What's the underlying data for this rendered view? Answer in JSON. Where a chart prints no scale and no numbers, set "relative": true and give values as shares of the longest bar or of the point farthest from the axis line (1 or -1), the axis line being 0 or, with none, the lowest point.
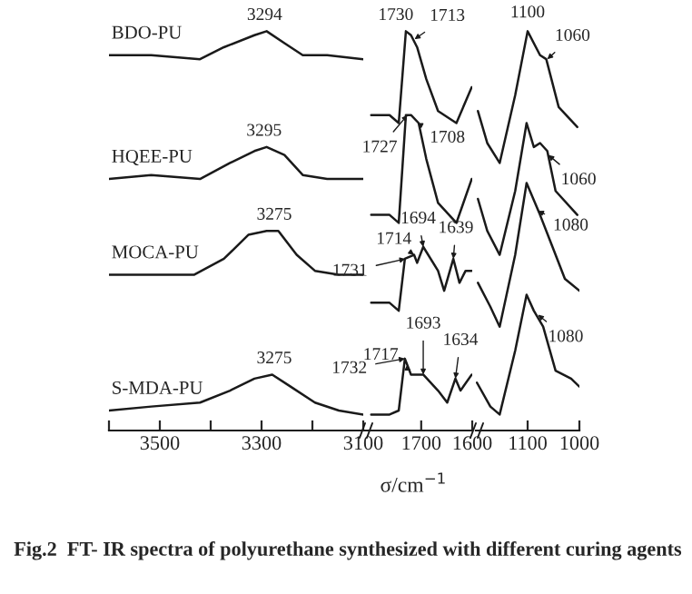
{
  "chart_data": [
    {
      "type": "line",
      "relative": true,
      "xlim": [
        3600,
        3100
      ],
      "xticks": [
        {
          "value": 3600,
          "label": null
        },
        3500,
        {
          "value": 3400,
          "label": null
        },
        3300,
        {
          "value": 3200,
          "label": null
        },
        3100
      ],
      "series": [
        {
          "name": "BDO-PU",
          "color": "#1a1a1a",
          "x": [
            3600,
            3517,
            3421,
            3374,
            3314,
            3290,
            3255,
            3219,
            3171,
            3100
          ],
          "values": [
            0.94,
            0.94,
            0.93,
            0.96,
            0.99,
            1.0,
            0.97,
            0.94,
            0.94,
            0.93
          ]
        },
        {
          "name": "HQEE-PU",
          "color": "#1a1a1a",
          "x": [
            3600,
            3517,
            3421,
            3362,
            3314,
            3290,
            3255,
            3219,
            3171,
            3100
          ],
          "values": [
            0.63,
            0.64,
            0.63,
            0.67,
            0.7,
            0.71,
            0.69,
            0.64,
            0.63,
            0.63
          ]
        },
        {
          "name": "MOCA-PU",
          "color": "#1a1a1a",
          "x": [
            3600,
            3517,
            3433,
            3374,
            3326,
            3290,
            3267,
            3231,
            3195,
            3148,
            3100
          ],
          "values": [
            0.39,
            0.39,
            0.39,
            0.43,
            0.49,
            0.5,
            0.5,
            0.44,
            0.4,
            0.39,
            0.39
          ]
        },
        {
          "name": "S-MDA-PU",
          "color": "#1a1a1a",
          "x": [
            3600,
            3517,
            3421,
            3362,
            3314,
            3279,
            3243,
            3195,
            3148,
            3100
          ],
          "values": [
            0.05,
            0.06,
            0.07,
            0.1,
            0.13,
            0.14,
            0.11,
            0.07,
            0.05,
            0.04
          ]
        }
      ],
      "annotations": [
        {
          "text": "3294",
          "x": 3294,
          "y": 1.0
        },
        {
          "text": "3295",
          "x": 3295,
          "y": 0.71
        },
        {
          "text": "3275",
          "x": 3275,
          "y": 0.5
        },
        {
          "text": "3275",
          "x": 3275,
          "y": 0.14
        }
      ]
    },
    {
      "type": "line",
      "relative": true,
      "xlim": [
        1810,
        1600
      ],
      "xticks": [
        1700,
        1600
      ],
      "xlabel": "σ/cm$^{−1}$",
      "series": [
        {
          "color": "#1a1a1a",
          "x": [
            1798,
            1762,
            1744,
            1730,
            1720,
            1708,
            1690,
            1667,
            1631,
            1601
          ],
          "values": [
            0.79,
            0.79,
            0.77,
            1.0,
            0.99,
            0.96,
            0.88,
            0.8,
            0.77,
            0.86
          ]
        },
        {
          "color": "#1a1a1a",
          "x": [
            1798,
            1762,
            1744,
            1730,
            1720,
            1705,
            1690,
            1667,
            1631,
            1601
          ],
          "values": [
            0.54,
            0.54,
            0.52,
            0.79,
            0.79,
            0.77,
            0.68,
            0.57,
            0.52,
            0.63
          ]
        },
        {
          "color": "#1a1a1a",
          "x": [
            1798,
            1762,
            1744,
            1732,
            1714,
            1708,
            1696,
            1667,
            1655,
            1637,
            1625,
            1613,
            1601
          ],
          "values": [
            0.32,
            0.32,
            0.3,
            0.43,
            0.44,
            0.42,
            0.46,
            0.4,
            0.35,
            0.43,
            0.37,
            0.4,
            0.4
          ]
        },
        {
          "color": "#1a1a1a",
          "x": [
            1798,
            1762,
            1744,
            1732,
            1720,
            1696,
            1667,
            1649,
            1633,
            1623,
            1601
          ],
          "values": [
            0.04,
            0.04,
            0.05,
            0.18,
            0.14,
            0.14,
            0.1,
            0.07,
            0.13,
            0.1,
            0.14
          ]
        }
      ],
      "annotations": [
        {
          "text": "1730",
          "x": 1730,
          "y": 1.0
        },
        {
          "text": "1713",
          "x": 1713,
          "y": 0.98
        },
        {
          "text": "1727",
          "x": 1727,
          "y": 0.79
        },
        {
          "text": "1708",
          "x": 1708,
          "y": 0.77
        },
        {
          "text": "1714",
          "x": 1714,
          "y": 0.44
        },
        {
          "text": "1694",
          "x": 1696,
          "y": 0.46
        },
        {
          "text": "1731",
          "x": 1731,
          "y": 0.43
        },
        {
          "text": "1639",
          "x": 1637,
          "y": 0.43
        },
        {
          "text": "1717",
          "x": 1720,
          "y": 0.15
        },
        {
          "text": "1693",
          "x": 1696,
          "y": 0.14
        },
        {
          "text": "1732",
          "x": 1732,
          "y": 0.18
        },
        {
          "text": "1634",
          "x": 1633,
          "y": 0.13
        },
        "Fig.2  FT- IR spectra of polyurethane synthesized with different curing agents"
      ]
    },
    {
      "type": "line",
      "relative": true,
      "xlim": [
        1200,
        1000
      ],
      "xticks": [
        1100,
        1000
      ],
      "series": [
        {
          "color": "#1a1a1a",
          "x": [
            1196,
            1178,
            1154,
            1124,
            1100,
            1076,
            1064,
            1040,
            1004
          ],
          "values": [
            0.8,
            0.72,
            0.67,
            0.84,
            1.0,
            0.94,
            0.93,
            0.81,
            0.76
          ]
        },
        {
          "color": "#1a1a1a",
          "x": [
            1196,
            1178,
            1154,
            1124,
            1102,
            1088,
            1076,
            1062,
            1046,
            1004
          ],
          "values": [
            0.58,
            0.5,
            0.44,
            0.6,
            0.77,
            0.71,
            0.72,
            0.7,
            0.6,
            0.54
          ]
        },
        {
          "color": "#1a1a1a",
          "x": [
            1196,
            1172,
            1154,
            1124,
            1102,
            1076,
            1052,
            1028,
            1000
          ],
          "values": [
            0.37,
            0.31,
            0.26,
            0.44,
            0.62,
            0.54,
            0.46,
            0.38,
            0.35
          ]
        },
        {
          "color": "#1a1a1a",
          "x": [
            1198,
            1172,
            1154,
            1124,
            1102,
            1088,
            1070,
            1046,
            1016,
            1000
          ],
          "values": [
            0.12,
            0.06,
            0.04,
            0.2,
            0.34,
            0.3,
            0.26,
            0.15,
            0.13,
            0.11
          ]
        }
      ],
      "annotations": [
        {
          "text": "1100",
          "x": 1100,
          "y": 1.0
        },
        {
          "text": "1060",
          "x": 1062,
          "y": 0.93
        },
        {
          "text": "1060",
          "x": 1060,
          "y": 0.69
        },
        {
          "text": "1080",
          "x": 1080,
          "y": 0.55
        },
        {
          "text": "1080",
          "x": 1080,
          "y": 0.29
        }
      ]
    }
  ]
}
